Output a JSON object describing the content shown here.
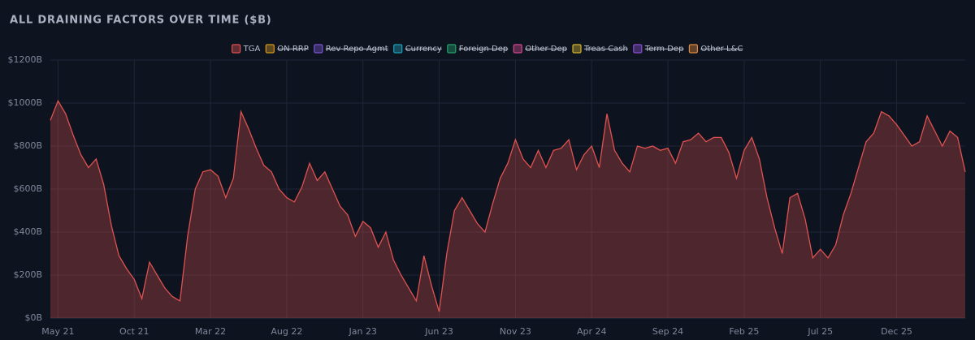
{
  "chart_data": {
    "type": "area",
    "title": "ALL DRAINING FACTORS OVER TIME ($B)",
    "categories": [
      null,
      "May 21",
      null,
      null,
      null,
      null,
      null,
      null,
      null,
      null,
      null,
      "Oct 21",
      null,
      null,
      null,
      null,
      null,
      null,
      null,
      null,
      null,
      "Mar 22",
      null,
      null,
      null,
      null,
      null,
      null,
      null,
      null,
      null,
      "Aug 22",
      null,
      null,
      null,
      null,
      null,
      null,
      null,
      null,
      null,
      "Jan 23",
      null,
      null,
      null,
      null,
      null,
      null,
      null,
      null,
      null,
      "Jun 23",
      null,
      null,
      null,
      null,
      null,
      null,
      null,
      null,
      null,
      "Nov 23",
      null,
      null,
      null,
      null,
      null,
      null,
      null,
      null,
      null,
      "Apr 24",
      null,
      null,
      null,
      null,
      null,
      null,
      null,
      null,
      null,
      "Sep 24",
      null,
      null,
      null,
      null,
      null,
      null,
      null,
      null,
      null,
      "Feb 25",
      null,
      null,
      null,
      null,
      null,
      null,
      null,
      null,
      null,
      "Jul 25",
      null,
      null,
      null,
      null,
      null,
      null,
      null,
      null,
      null,
      "Dec 25",
      null,
      null,
      null,
      null,
      null,
      null,
      null,
      null,
      null
    ],
    "series": [
      {
        "name": "TGA",
        "color": "#e0524f",
        "values": [
          920,
          1010,
          950,
          850,
          760,
          700,
          740,
          620,
          430,
          290,
          230,
          180,
          90,
          260,
          200,
          140,
          100,
          80,
          380,
          600,
          680,
          690,
          660,
          560,
          650,
          960,
          880,
          790,
          710,
          680,
          600,
          560,
          540,
          610,
          720,
          640,
          680,
          600,
          520,
          480,
          380,
          450,
          420,
          330,
          400,
          270,
          200,
          140,
          80,
          290,
          150,
          30,
          300,
          500,
          560,
          500,
          440,
          400,
          530,
          650,
          720,
          830,
          740,
          700,
          780,
          700,
          780,
          790,
          830,
          690,
          760,
          800,
          700,
          950,
          780,
          720,
          680,
          800,
          790,
          800,
          780,
          790,
          720,
          820,
          830,
          860,
          820,
          840,
          840,
          770,
          650,
          780,
          840,
          740,
          560,
          420,
          300,
          560,
          580,
          460,
          280,
          320,
          280,
          340,
          480,
          580,
          700,
          820,
          860,
          960,
          940,
          900,
          850,
          800,
          820,
          940,
          870,
          800,
          870,
          840,
          680
        ]
      },
      {
        "name": "ON RRP",
        "color": "#d4961f",
        "hidden": true
      },
      {
        "name": "Rev Repo Agmt",
        "color": "#7a55d0",
        "hidden": true
      },
      {
        "name": "Currency",
        "color": "#1fa0b8",
        "hidden": true
      },
      {
        "name": "Foreign Dep",
        "color": "#24a36a",
        "hidden": true
      },
      {
        "name": "Other Dep",
        "color": "#d04a8f",
        "hidden": true
      },
      {
        "name": "Treas Cash",
        "color": "#d4b52a",
        "hidden": true
      },
      {
        "name": "Term Dep",
        "color": "#8a4fd0",
        "hidden": true
      },
      {
        "name": "Other L&C",
        "color": "#e08a3a",
        "hidden": true
      }
    ],
    "ylim": [
      0,
      1200
    ],
    "yticks": [
      {
        "value": 0,
        "label": "$0B"
      },
      {
        "value": 200,
        "label": "$200B"
      },
      {
        "value": 400,
        "label": "$400B"
      },
      {
        "value": 600,
        "label": "$600B"
      },
      {
        "value": 800,
        "label": "$800B"
      },
      {
        "value": 1000,
        "label": "$1000B"
      },
      {
        "value": 1200,
        "label": "$1200B"
      }
    ],
    "grid": true
  }
}
